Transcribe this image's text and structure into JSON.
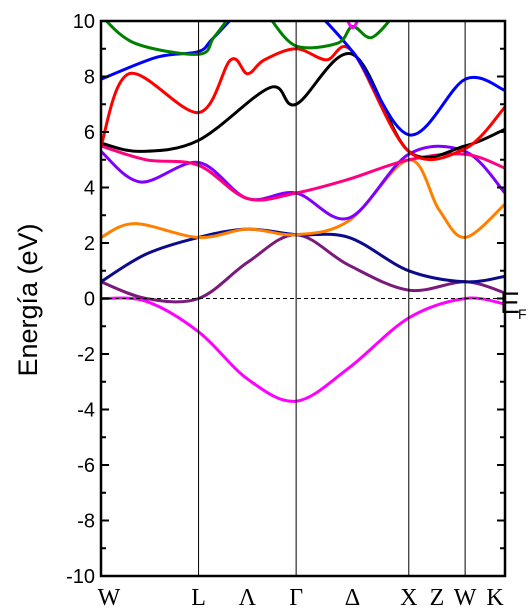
{
  "chart_data": {
    "type": "line",
    "title": "",
    "xlabel": "",
    "ylabel": "Energía (eV)",
    "ylim": [
      -10,
      10
    ],
    "y_ticks": [
      -10,
      -8,
      -6,
      -4,
      -2,
      0,
      2,
      4,
      6,
      8,
      10
    ],
    "y_tick_labels": [
      "-10",
      "-8",
      "-6",
      "-4",
      "-2",
      "0",
      "2",
      "4",
      "6",
      "8",
      "10"
    ],
    "x_labels": [
      {
        "label": "W",
        "x": 0
      },
      {
        "label": "L",
        "x": 0.866
      },
      {
        "label": "Λ",
        "x": 1.299
      },
      {
        "label": "Γ",
        "x": 1.732
      },
      {
        "label": "Δ",
        "x": 2.232
      },
      {
        "label": "X",
        "x": 2.732
      },
      {
        "label": "Z",
        "x": 2.982
      },
      {
        "label": "W",
        "x": 3.232
      },
      {
        "label": "K",
        "x": 3.586
      }
    ],
    "xlim": [
      0,
      3.586
    ],
    "high_symmetry_points": [
      0.866,
      1.732,
      2.732,
      3.232
    ],
    "fermi_level": {
      "value": 0,
      "label_main": "E",
      "label_sub": "F"
    },
    "grid": false,
    "series": [
      {
        "color": "#ff00ff",
        "x": [
          0,
          0.4,
          0.866,
          1.3,
          1.732,
          2.2,
          2.732,
          3.232,
          3.586
        ],
        "y": [
          0,
          -0.1,
          -1.2,
          -2.9,
          -3.7,
          -2.5,
          -0.7,
          0,
          -0.2
        ]
      },
      {
        "color": "#7a1a7a",
        "x": [
          0,
          0.4,
          0.866,
          1.3,
          1.732,
          2.2,
          2.732,
          3.232,
          3.586
        ],
        "y": [
          0.6,
          0,
          0,
          1.3,
          2.3,
          1.2,
          0.3,
          0.6,
          0.2
        ]
      },
      {
        "color": "#0b0b8c",
        "x": [
          0,
          0.4,
          0.866,
          1.3,
          1.732,
          2.2,
          2.732,
          3.232,
          3.586
        ],
        "y": [
          0.6,
          1.6,
          2.2,
          2.5,
          2.3,
          2.2,
          1.0,
          0.6,
          0.8
        ]
      },
      {
        "color": "#ff8000",
        "x": [
          0,
          0.3,
          0.866,
          1.3,
          1.732,
          2.2,
          2.732,
          3.0,
          3.232,
          3.586
        ],
        "y": [
          2.2,
          2.7,
          2.2,
          2.5,
          2.3,
          2.8,
          5.0,
          3.2,
          2.2,
          3.4
        ]
      },
      {
        "color": "#8000ff",
        "x": [
          0,
          0.35,
          0.866,
          1.3,
          1.732,
          2.2,
          2.732,
          3.232,
          3.586
        ],
        "y": [
          5.3,
          4.2,
          4.9,
          3.6,
          3.8,
          2.9,
          5.2,
          5.3,
          3.8
        ]
      },
      {
        "color": "#ff0080",
        "x": [
          0,
          0.4,
          0.866,
          1.3,
          1.732,
          2.2,
          2.732,
          3.232,
          3.586
        ],
        "y": [
          5.5,
          5.0,
          4.8,
          3.6,
          3.8,
          4.3,
          5.0,
          5.2,
          4.7
        ]
      },
      {
        "color": "#000000",
        "x": [
          0,
          0.35,
          0.866,
          1.5,
          1.732,
          2.232,
          2.732,
          3.232,
          3.586
        ],
        "y": [
          5.6,
          5.3,
          5.7,
          7.6,
          7.0,
          8.8,
          5.3,
          5.5,
          6.1
        ]
      },
      {
        "color": "#ff0000",
        "x": [
          0,
          0.25,
          0.866,
          1.15,
          1.3,
          1.45,
          1.732,
          2.0,
          2.232,
          2.732,
          3.232,
          3.586
        ],
        "y": [
          5.5,
          8.1,
          6.7,
          8.6,
          8.1,
          8.6,
          9.0,
          8.6,
          8.9,
          5.3,
          5.4,
          6.9
        ]
      },
      {
        "color": "#0000ff",
        "x": [
          0,
          0.5,
          0.866,
          1.0,
          1.3,
          1.732,
          2.232,
          2.732,
          3.232,
          3.586
        ],
        "y": [
          7.9,
          8.7,
          8.9,
          9.4,
          10.5,
          10.8,
          8.9,
          5.9,
          7.9,
          7.5
        ]
      },
      {
        "color": "#008000",
        "x": [
          0,
          0.3,
          0.866,
          1.0,
          1.15
        ],
        "y": [
          10.2,
          9.2,
          8.8,
          9.4,
          10.2
        ]
      },
      {
        "color": "#008000",
        "x": [
          1.5,
          1.732,
          2.1,
          2.232,
          2.4,
          2.6
        ],
        "y": [
          10.1,
          9.1,
          9.2,
          9.8,
          9.4,
          10.2
        ]
      },
      {
        "color": "#ff00ff",
        "x": [
          2.18,
          2.232,
          2.29
        ],
        "y": [
          10.1,
          9.75,
          10.1
        ]
      }
    ]
  }
}
